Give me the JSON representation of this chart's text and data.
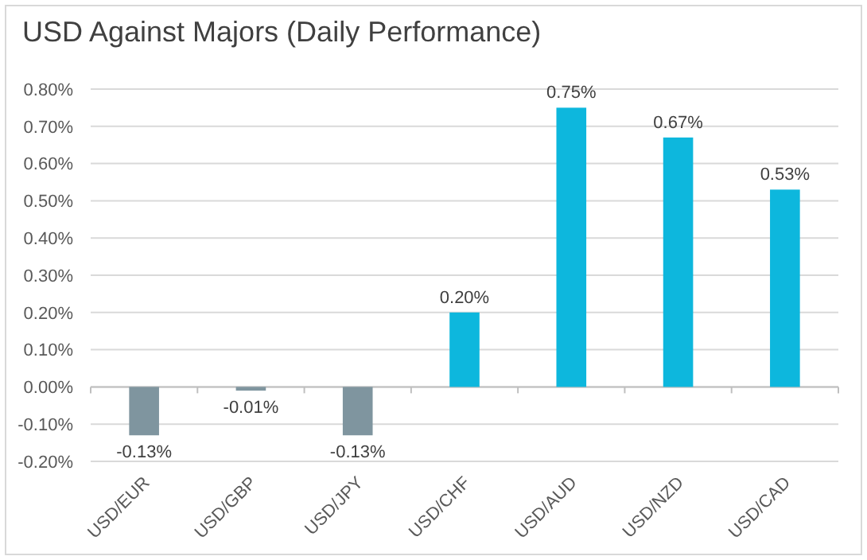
{
  "chart_data": {
    "type": "bar",
    "title": "USD Against Majors (Daily Performance)",
    "categories": [
      "USD/EUR",
      "USD/GBP",
      "USD/JPY",
      "USD/CHF",
      "USD/AUD",
      "USD/NZD",
      "USD/CAD"
    ],
    "values": [
      -0.13,
      -0.01,
      -0.13,
      0.2,
      0.75,
      0.67,
      0.53
    ],
    "colors": [
      "#7f959f",
      "#7f959f",
      "#7f959f",
      "#0db7dd",
      "#0db7dd",
      "#0db7dd",
      "#0db7dd"
    ],
    "value_labels": [
      "-0.13%",
      "-0.01%",
      "-0.13%",
      "0.20%",
      "0.75%",
      "0.67%",
      "0.53%"
    ],
    "ylim": [
      -0.2,
      0.8
    ],
    "yticks": [
      {
        "value": -0.2,
        "label": "-0.20%"
      },
      {
        "value": -0.1,
        "label": "-0.10%"
      },
      {
        "value": 0,
        "label": "0.00%"
      },
      {
        "value": 0.1,
        "label": "0.10%"
      },
      {
        "value": 0.2,
        "label": "0.20%"
      },
      {
        "value": 0.3,
        "label": "0.30%"
      },
      {
        "value": 0.4,
        "label": "0.40%"
      },
      {
        "value": 0.5,
        "label": "0.50%"
      },
      {
        "value": 0.6,
        "label": "0.60%"
      },
      {
        "value": 0.7,
        "label": "0.70%"
      },
      {
        "value": 0.8,
        "label": "0.80%"
      }
    ],
    "grid": "y"
  }
}
